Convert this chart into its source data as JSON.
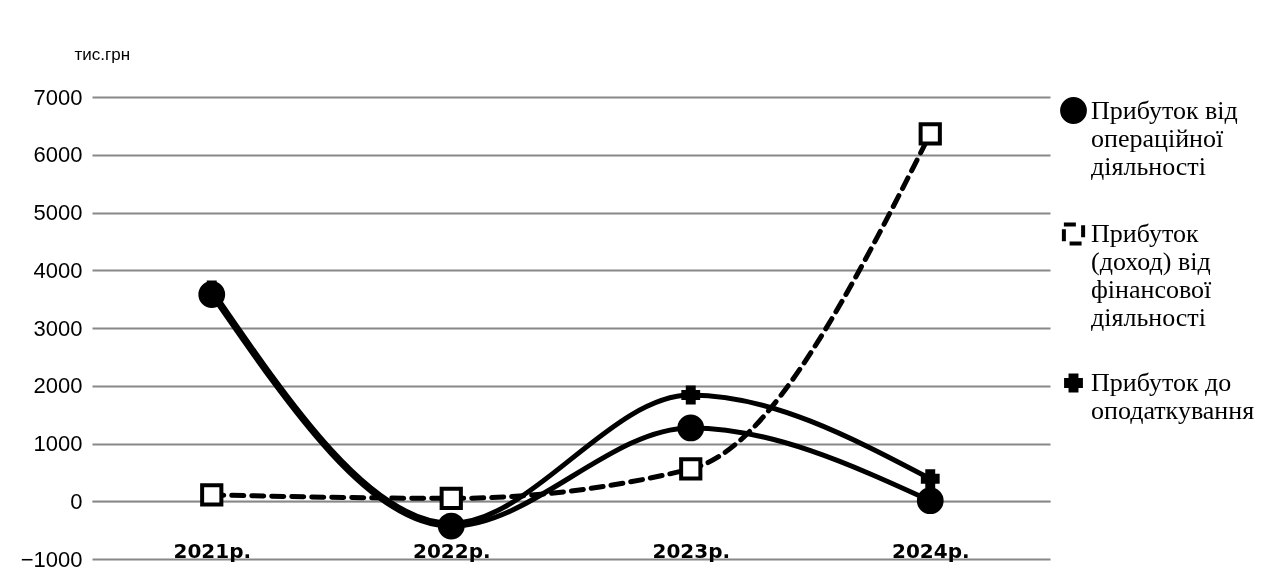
{
  "chart_data": {
    "type": "line",
    "ylabel": "тис.грн",
    "categories": [
      "2021р.",
      "2022р.",
      "2023р.",
      "2024р."
    ],
    "series": [
      {
        "name": "Прибуток від операційної діяльності",
        "color": "#000000",
        "marker": "circle",
        "line_style": "solid",
        "values": [
          3580,
          -430,
          1270,
          10
        ]
      },
      {
        "name": "Прибуток (доход) від фінансової діяльності",
        "color": "#000000",
        "marker": "square",
        "line_style": "dashed",
        "values": [
          110,
          50,
          560,
          6360
        ]
      },
      {
        "name": "Прибуток  до оподаткування",
        "color": "#000000",
        "marker": "cross",
        "line_style": "solid",
        "values": [
          3660,
          -380,
          1840,
          390
        ]
      }
    ],
    "ylim": [
      -1000,
      7000
    ],
    "yticks": [
      -1000,
      0,
      1000,
      2000,
      3000,
      4000,
      5000,
      6000,
      7000
    ],
    "grid": "y",
    "legend": "right"
  }
}
